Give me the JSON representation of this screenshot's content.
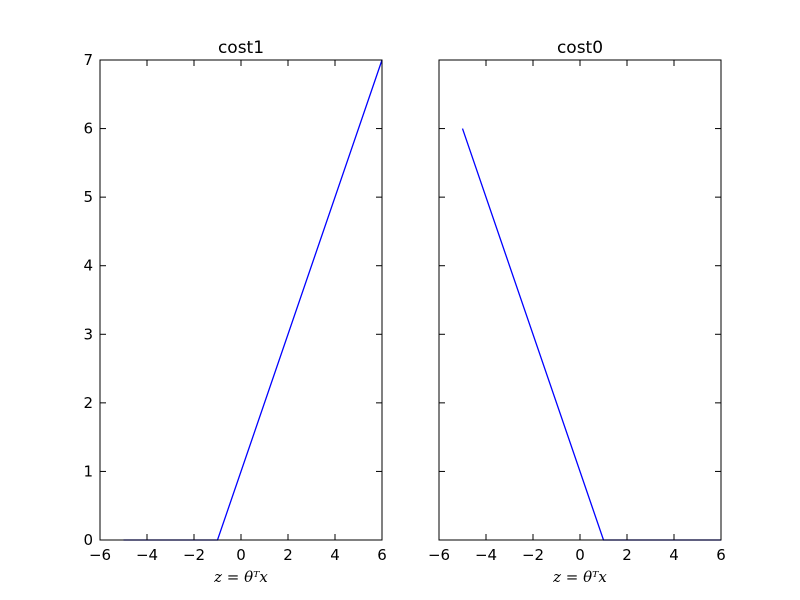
{
  "chart_data": [
    {
      "type": "line",
      "title": "cost1",
      "xlabel": "z = θᵀx",
      "ylabel": "",
      "xlim": [
        -6,
        6
      ],
      "ylim": [
        0,
        7
      ],
      "xticks": [
        -6,
        -4,
        -2,
        0,
        2,
        4,
        6
      ],
      "yticks": [
        0,
        1,
        2,
        3,
        4,
        5,
        6,
        7
      ],
      "show_y_tick_labels": true,
      "grid": false,
      "series": [
        {
          "color": "#0000ff",
          "x": [
            -5,
            -1,
            6
          ],
          "y": [
            0,
            0,
            7
          ]
        }
      ]
    },
    {
      "type": "line",
      "title": "cost0",
      "xlabel": "z = θᵀx",
      "ylabel": "",
      "xlim": [
        -6,
        6
      ],
      "ylim": [
        0,
        7
      ],
      "xticks": [
        -6,
        -4,
        -2,
        0,
        2,
        4,
        6
      ],
      "yticks": [
        0,
        1,
        2,
        3,
        4,
        5,
        6,
        7
      ],
      "show_y_tick_labels": false,
      "grid": false,
      "series": [
        {
          "color": "#0000ff",
          "x": [
            -5,
            1,
            6
          ],
          "y": [
            6,
            0,
            0
          ]
        }
      ]
    }
  ]
}
